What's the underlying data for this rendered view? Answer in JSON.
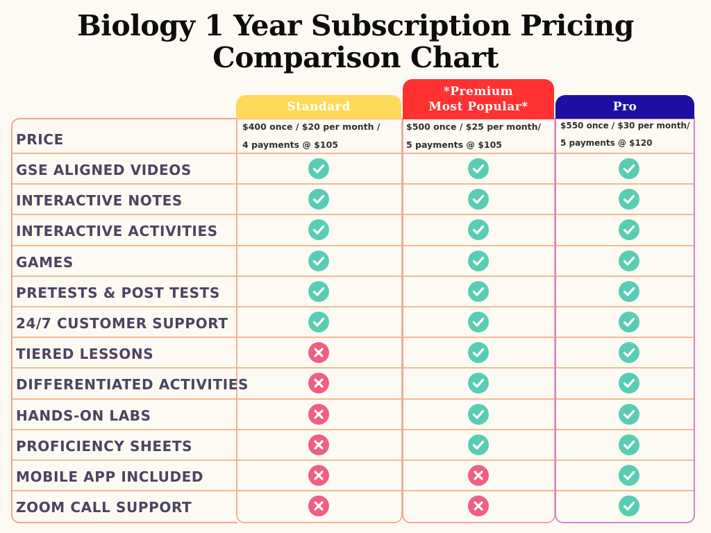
{
  "title_line1": "Biology 1 Year Subscription Pricing",
  "title_line2": "Comparison Chart",
  "plans": [
    {
      "name": "Standard",
      "price_line1": "$400 once / $20 per month /",
      "price_line2": "4 payments @ $105",
      "color": "#ffd95a"
    },
    {
      "name_line1": "*Premium",
      "name_line2": "Most Popular*",
      "price_line1": "$500 once / $25 per month/",
      "price_line2": "5 payments @ $105",
      "color": "#ff3131"
    },
    {
      "name": "Pro",
      "price_line1": "$550 once / $30 per month/",
      "price_line2": "5 payments @ $120",
      "color": "#1e0fa3"
    }
  ],
  "price_label": "PRICE",
  "features": [
    {
      "label": "GSE ALIGNED VIDEOS",
      "included": [
        "check",
        "check",
        "check"
      ]
    },
    {
      "label": "INTERACTIVE NOTES",
      "included": [
        "check",
        "check",
        "check"
      ]
    },
    {
      "label": "INTERACTIVE ACTIVITIES",
      "included": [
        "check",
        "check",
        "check"
      ]
    },
    {
      "label": "GAMES",
      "included": [
        "check",
        "check",
        "check"
      ]
    },
    {
      "label": "PRETESTS & POST TESTS",
      "included": [
        "check",
        "check",
        "check"
      ]
    },
    {
      "label": "24/7 CUSTOMER SUPPORT",
      "included": [
        "check",
        "check",
        "check"
      ]
    },
    {
      "label": "TIERED LESSONS",
      "included": [
        "cross",
        "check",
        "check"
      ]
    },
    {
      "label": "DIFFERENTIATED ACTIVITIES",
      "included": [
        "cross",
        "check",
        "check"
      ]
    },
    {
      "label": "HANDS-ON LABS",
      "included": [
        "cross",
        "check",
        "check"
      ]
    },
    {
      "label": "PROFICIENCY SHEETS",
      "included": [
        "cross",
        "check",
        "check"
      ]
    },
    {
      "label": "MOBILE APP INCLUDED",
      "included": [
        "cross",
        "cross",
        "check"
      ]
    },
    {
      "label": "ZOOM CALL SUPPORT",
      "included": [
        "cross",
        "cross",
        "check"
      ]
    }
  ],
  "colors": {
    "check": "#59cdb4",
    "cross": "#ef5e84",
    "text": "#4a4560",
    "background": "#fdf9f3"
  }
}
